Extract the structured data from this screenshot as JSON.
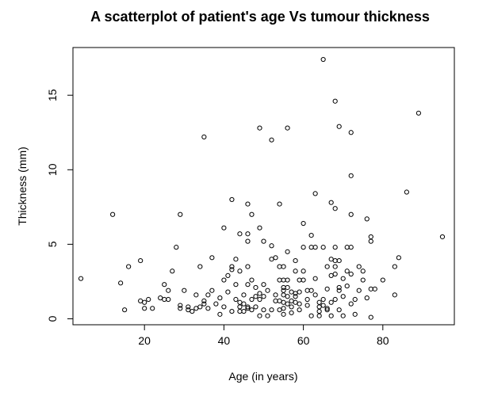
{
  "chart_data": {
    "type": "scatter",
    "title": "A scatterplot of patient's age Vs tumour thickness",
    "xlabel": "Age (in years)",
    "ylabel": "Thickness (mm)",
    "xlim": [
      2,
      98
    ],
    "ylim": [
      -0.4,
      18.2
    ],
    "xticks": [
      20,
      40,
      60,
      80
    ],
    "yticks": [
      0,
      5,
      10,
      15
    ],
    "grid": false,
    "legend": "none",
    "series": [
      {
        "points": [
          [
            4,
            2.7
          ],
          [
            12,
            7.0
          ],
          [
            14,
            2.4
          ],
          [
            15,
            0.6
          ],
          [
            16,
            3.5
          ],
          [
            19,
            3.9
          ],
          [
            19,
            1.2
          ],
          [
            20,
            0.7
          ],
          [
            20,
            1.1
          ],
          [
            21,
            1.3
          ],
          [
            22,
            0.7
          ],
          [
            24,
            1.4
          ],
          [
            25,
            2.3
          ],
          [
            25,
            1.3
          ],
          [
            26,
            1.9
          ],
          [
            26,
            1.3
          ],
          [
            27,
            3.2
          ],
          [
            28,
            4.8
          ],
          [
            29,
            7.0
          ],
          [
            29,
            0.9
          ],
          [
            29,
            0.7
          ],
          [
            30,
            1.9
          ],
          [
            31,
            0.8
          ],
          [
            31,
            0.6
          ],
          [
            32,
            0.5
          ],
          [
            33,
            0.7
          ],
          [
            33,
            1.6
          ],
          [
            34,
            3.5
          ],
          [
            34,
            0.8
          ],
          [
            35,
            12.2
          ],
          [
            35,
            1.0
          ],
          [
            35,
            1.2
          ],
          [
            36,
            0.7
          ],
          [
            36,
            1.6
          ],
          [
            37,
            4.1
          ],
          [
            37,
            1.9
          ],
          [
            38,
            1.0
          ],
          [
            39,
            0.3
          ],
          [
            39,
            1.4
          ],
          [
            40,
            6.1
          ],
          [
            40,
            2.6
          ],
          [
            40,
            0.8
          ],
          [
            41,
            2.9
          ],
          [
            41,
            1.8
          ],
          [
            42,
            8.0
          ],
          [
            42,
            3.3
          ],
          [
            42,
            3.5
          ],
          [
            42,
            0.5
          ],
          [
            43,
            4.0
          ],
          [
            43,
            2.3
          ],
          [
            43,
            1.3
          ],
          [
            44,
            5.7
          ],
          [
            44,
            3.2
          ],
          [
            44,
            0.8
          ],
          [
            44,
            0.5
          ],
          [
            44,
            1.1
          ],
          [
            45,
            1.0
          ],
          [
            45,
            1.6
          ],
          [
            45,
            0.5
          ],
          [
            46,
            7.7
          ],
          [
            46,
            5.7
          ],
          [
            46,
            5.2
          ],
          [
            46,
            3.5
          ],
          [
            46,
            2.3
          ],
          [
            46,
            0.8
          ],
          [
            46,
            0.7
          ],
          [
            47,
            7.0
          ],
          [
            47,
            2.6
          ],
          [
            47,
            1.3
          ],
          [
            47,
            0.6
          ],
          [
            48,
            0.8
          ],
          [
            48,
            1.5
          ],
          [
            48,
            2.1
          ],
          [
            49,
            12.8
          ],
          [
            49,
            6.1
          ],
          [
            49,
            1.7
          ],
          [
            49,
            1.3
          ],
          [
            49,
            0.2
          ],
          [
            50,
            5.2
          ],
          [
            50,
            2.3
          ],
          [
            50,
            1.5
          ],
          [
            50,
            0.6
          ],
          [
            51,
            0.2
          ],
          [
            51,
            1.9
          ],
          [
            52,
            12.0
          ],
          [
            52,
            4.9
          ],
          [
            52,
            4.0
          ],
          [
            52,
            0.6
          ],
          [
            53,
            4.1
          ],
          [
            53,
            1.6
          ],
          [
            53,
            1.2
          ],
          [
            54,
            7.7
          ],
          [
            54,
            3.5
          ],
          [
            54,
            2.6
          ],
          [
            54,
            1.2
          ],
          [
            54,
            0.6
          ],
          [
            55,
            3.5
          ],
          [
            55,
            2.6
          ],
          [
            55,
            2.1
          ],
          [
            55,
            1.9
          ],
          [
            55,
            1.6
          ],
          [
            55,
            1.1
          ],
          [
            55,
            0.7
          ],
          [
            55,
            0.3
          ],
          [
            56,
            12.8
          ],
          [
            56,
            4.5
          ],
          [
            56,
            2.6
          ],
          [
            56,
            2.1
          ],
          [
            56,
            1.5
          ],
          [
            56,
            1.0
          ],
          [
            57,
            1.8
          ],
          [
            57,
            1.2
          ],
          [
            57,
            0.8
          ],
          [
            57,
            0.4
          ],
          [
            58,
            3.9
          ],
          [
            58,
            3.2
          ],
          [
            58,
            1.7
          ],
          [
            58,
            1.5
          ],
          [
            58,
            1.1
          ],
          [
            59,
            2.6
          ],
          [
            59,
            1.8
          ],
          [
            59,
            1.0
          ],
          [
            59,
            0.6
          ],
          [
            60,
            6.4
          ],
          [
            60,
            4.8
          ],
          [
            60,
            3.2
          ],
          [
            60,
            2.6
          ],
          [
            61,
            1.9
          ],
          [
            61,
            1.3
          ],
          [
            61,
            0.9
          ],
          [
            62,
            5.6
          ],
          [
            62,
            4.8
          ],
          [
            62,
            1.9
          ],
          [
            62,
            0.2
          ],
          [
            63,
            8.4
          ],
          [
            63,
            4.8
          ],
          [
            63,
            2.7
          ],
          [
            63,
            1.6
          ],
          [
            64,
            1.1
          ],
          [
            64,
            0.8
          ],
          [
            64,
            0.5
          ],
          [
            64,
            0.2
          ],
          [
            65,
            17.4
          ],
          [
            65,
            4.8
          ],
          [
            65,
            1.3
          ],
          [
            65,
            0.9
          ],
          [
            66,
            3.5
          ],
          [
            66,
            2.0
          ],
          [
            66,
            0.7
          ],
          [
            66,
            0.6
          ],
          [
            67,
            7.8
          ],
          [
            67,
            4.0
          ],
          [
            67,
            2.9
          ],
          [
            67,
            1.1
          ],
          [
            67,
            0.2
          ],
          [
            68,
            14.6
          ],
          [
            68,
            7.4
          ],
          [
            68,
            4.8
          ],
          [
            68,
            3.5
          ],
          [
            68,
            3.9
          ],
          [
            68,
            3.0
          ],
          [
            68,
            1.3
          ],
          [
            69,
            12.9
          ],
          [
            69,
            3.9
          ],
          [
            69,
            2.1
          ],
          [
            69,
            1.9
          ],
          [
            69,
            0.6
          ],
          [
            70,
            2.7
          ],
          [
            70,
            1.5
          ],
          [
            70,
            0.2
          ],
          [
            71,
            4.8
          ],
          [
            71,
            3.2
          ],
          [
            71,
            2.2
          ],
          [
            72,
            12.5
          ],
          [
            72,
            9.6
          ],
          [
            72,
            7.0
          ],
          [
            72,
            4.8
          ],
          [
            72,
            3.0
          ],
          [
            72,
            1.0
          ],
          [
            73,
            1.3
          ],
          [
            73,
            0.3
          ],
          [
            74,
            3.5
          ],
          [
            74,
            1.9
          ],
          [
            75,
            3.2
          ],
          [
            75,
            2.6
          ],
          [
            76,
            6.7
          ],
          [
            76,
            1.4
          ],
          [
            77,
            5.5
          ],
          [
            77,
            5.2
          ],
          [
            77,
            2.0
          ],
          [
            77,
            0.1
          ],
          [
            78,
            2.0
          ],
          [
            80,
            2.6
          ],
          [
            83,
            3.5
          ],
          [
            83,
            1.6
          ],
          [
            84,
            4.1
          ],
          [
            86,
            8.5
          ],
          [
            89,
            13.8
          ],
          [
            95,
            5.5
          ]
        ]
      }
    ]
  }
}
